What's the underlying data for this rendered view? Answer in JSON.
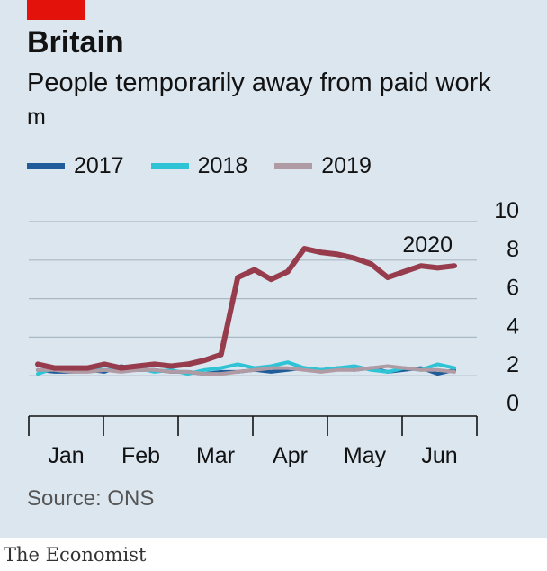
{
  "title": "Britain",
  "subtitle": "People temporarily away from paid work",
  "unit": "m",
  "source": "Source: ONS",
  "brand": "The Economist",
  "colors": {
    "2017": "#1f5c99",
    "2018": "#2ec4d6",
    "2019": "#b09aa4",
    "2020": "#963c4c",
    "panel": "#dbe6ef",
    "accent": "#e3120b"
  },
  "chart_data": {
    "type": "line",
    "ylim": [
      0,
      10
    ],
    "y_ticks": [
      "0",
      "2",
      "4",
      "6",
      "8",
      "10"
    ],
    "y_axis_position": "right",
    "grid": true,
    "legend_position": "top-left",
    "x_labels": [
      "Jan",
      "Feb",
      "Mar",
      "Apr",
      "May",
      "Jun"
    ],
    "series": [
      {
        "name": "2017",
        "x": [
          0,
          1,
          2,
          3,
          4,
          5,
          6,
          7,
          8,
          9,
          10,
          11,
          12,
          13,
          14,
          15,
          16,
          17,
          18,
          19,
          20,
          21,
          22,
          23,
          24,
          25
        ],
        "values": [
          2.3,
          2.2,
          2.2,
          2.3,
          2.2,
          2.5,
          2.3,
          2.3,
          2.2,
          2.2,
          2.1,
          2.2,
          2.2,
          2.3,
          2.2,
          2.3,
          2.4,
          2.3,
          2.4,
          2.3,
          2.4,
          2.2,
          2.3,
          2.4,
          2.1,
          2.3
        ]
      },
      {
        "name": "2018",
        "x": [
          0,
          1,
          2,
          3,
          4,
          5,
          6,
          7,
          8,
          9,
          10,
          11,
          12,
          13,
          14,
          15,
          16,
          17,
          18,
          19,
          20,
          21,
          22,
          23,
          24,
          25
        ],
        "values": [
          2.1,
          2.4,
          2.3,
          2.4,
          2.3,
          2.3,
          2.4,
          2.2,
          2.3,
          2.1,
          2.3,
          2.4,
          2.6,
          2.4,
          2.5,
          2.7,
          2.4,
          2.3,
          2.4,
          2.5,
          2.3,
          2.2,
          2.4,
          2.3,
          2.6,
          2.4
        ]
      },
      {
        "name": "2019",
        "x": [
          0,
          1,
          2,
          3,
          4,
          5,
          6,
          7,
          8,
          9,
          10,
          11,
          12,
          13,
          14,
          15,
          16,
          17,
          18,
          19,
          20,
          21,
          22,
          23,
          24,
          25
        ],
        "values": [
          2.3,
          2.3,
          2.2,
          2.2,
          2.3,
          2.2,
          2.3,
          2.3,
          2.2,
          2.2,
          2.1,
          2.1,
          2.2,
          2.3,
          2.4,
          2.4,
          2.3,
          2.2,
          2.3,
          2.3,
          2.4,
          2.5,
          2.4,
          2.3,
          2.3,
          2.2
        ]
      },
      {
        "name": "2020",
        "label": "2020",
        "x": [
          0,
          1,
          2,
          3,
          4,
          5,
          6,
          7,
          8,
          9,
          10,
          11,
          12,
          13,
          14,
          15,
          16,
          17,
          18,
          19,
          20,
          21,
          22,
          23,
          24,
          25
        ],
        "values": [
          2.6,
          2.4,
          2.4,
          2.4,
          2.6,
          2.4,
          2.5,
          2.6,
          2.5,
          2.6,
          2.8,
          3.1,
          7.1,
          7.5,
          7.0,
          7.4,
          8.6,
          8.4,
          8.3,
          8.1,
          7.8,
          7.1,
          7.4,
          7.7,
          7.6,
          7.7
        ]
      }
    ]
  }
}
